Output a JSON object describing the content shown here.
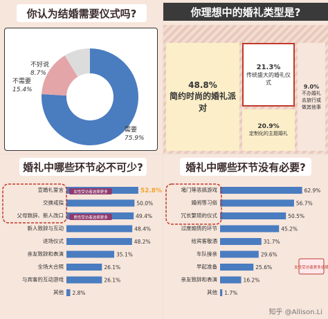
{
  "top_left": {
    "title": "你认为结婚需要仪式吗?"
  },
  "top_right": {
    "title": "你理想中的婚礼类型是?"
  },
  "bottom_left": {
    "title": "婚礼中哪些环节必不可少?",
    "tag_female": "女性受访者选择更多",
    "tag_male": "男性受访者选择更多"
  },
  "bottom_right": {
    "title": "婚礼中哪些环节没有必要?",
    "tag_female": "女性受访者更多选择",
    "watermark": "知乎 @Allison.Li"
  },
  "colors": {
    "blue": "#4a7cc0",
    "pink": "#e4a5a8",
    "gray": "#dcdcdc",
    "red_box": "#c0392b",
    "cream": "#fbeec8",
    "bar": "#4a7cc0",
    "highlight": "#f0a330"
  },
  "chart_data": [
    {
      "type": "pie",
      "title": "你认为结婚需要仪式吗?",
      "categories": [
        "需要",
        "不需要",
        "不好说"
      ],
      "values": [
        75.9,
        15.4,
        8.7
      ],
      "labels": [
        "75.9%",
        "15.4%",
        "8.7%"
      ]
    },
    {
      "type": "bar",
      "subtype": "treemap",
      "title": "你理想中的婚礼类型是?",
      "categories": [
        "简约时尚的婚礼派对",
        "传统盛大的婚礼仪式",
        "定制化的主题婚礼",
        "不办婚礼去旅行或做其他事"
      ],
      "values": [
        48.8,
        21.3,
        20.9,
        9.0
      ],
      "labels": [
        "48.8%",
        "21.3%",
        "20.9%",
        "9.0%"
      ]
    },
    {
      "type": "bar",
      "orientation": "horizontal",
      "title": "婚礼中哪些环节必不可少?",
      "categories": [
        "宣婚礼誓言",
        "交换戒指",
        "父母致辞、新人改口",
        "新人致辞与互动",
        "进场仪式",
        "亲友致辞和表演",
        "全场大合照",
        "与宾客的互动游戏",
        "其他"
      ],
      "values": [
        52.8,
        50.0,
        49.4,
        48.4,
        48.2,
        35.1,
        26.1,
        26.1,
        2.8
      ],
      "labels": [
        "52.8%",
        "50.0%",
        "49.4%",
        "48.4%",
        "48.2%",
        "35.1%",
        "26.1%",
        "26.1%",
        "2.8%"
      ],
      "xlim": [
        0,
        60
      ]
    },
    {
      "type": "bar",
      "orientation": "horizontal",
      "title": "婚礼中哪些环节没有必要?",
      "categories": [
        "堵门等恶搞游戏",
        "婚闹等习俗",
        "冗长繁琐的仪式",
        "过度煽情的环节",
        "给宾客敬酒",
        "车队接亲",
        "早起准备",
        "亲友致辞和表演",
        "其他"
      ],
      "values": [
        62.9,
        56.7,
        50.5,
        45.2,
        31.7,
        29.6,
        25.6,
        16.2,
        1.7
      ],
      "labels": [
        "62.9%",
        "56.7%",
        "50.5%",
        "45.2%",
        "31.7%",
        "29.6%",
        "25.6%",
        "16.2%",
        "1.7%"
      ],
      "xlim": [
        0,
        70
      ]
    }
  ]
}
